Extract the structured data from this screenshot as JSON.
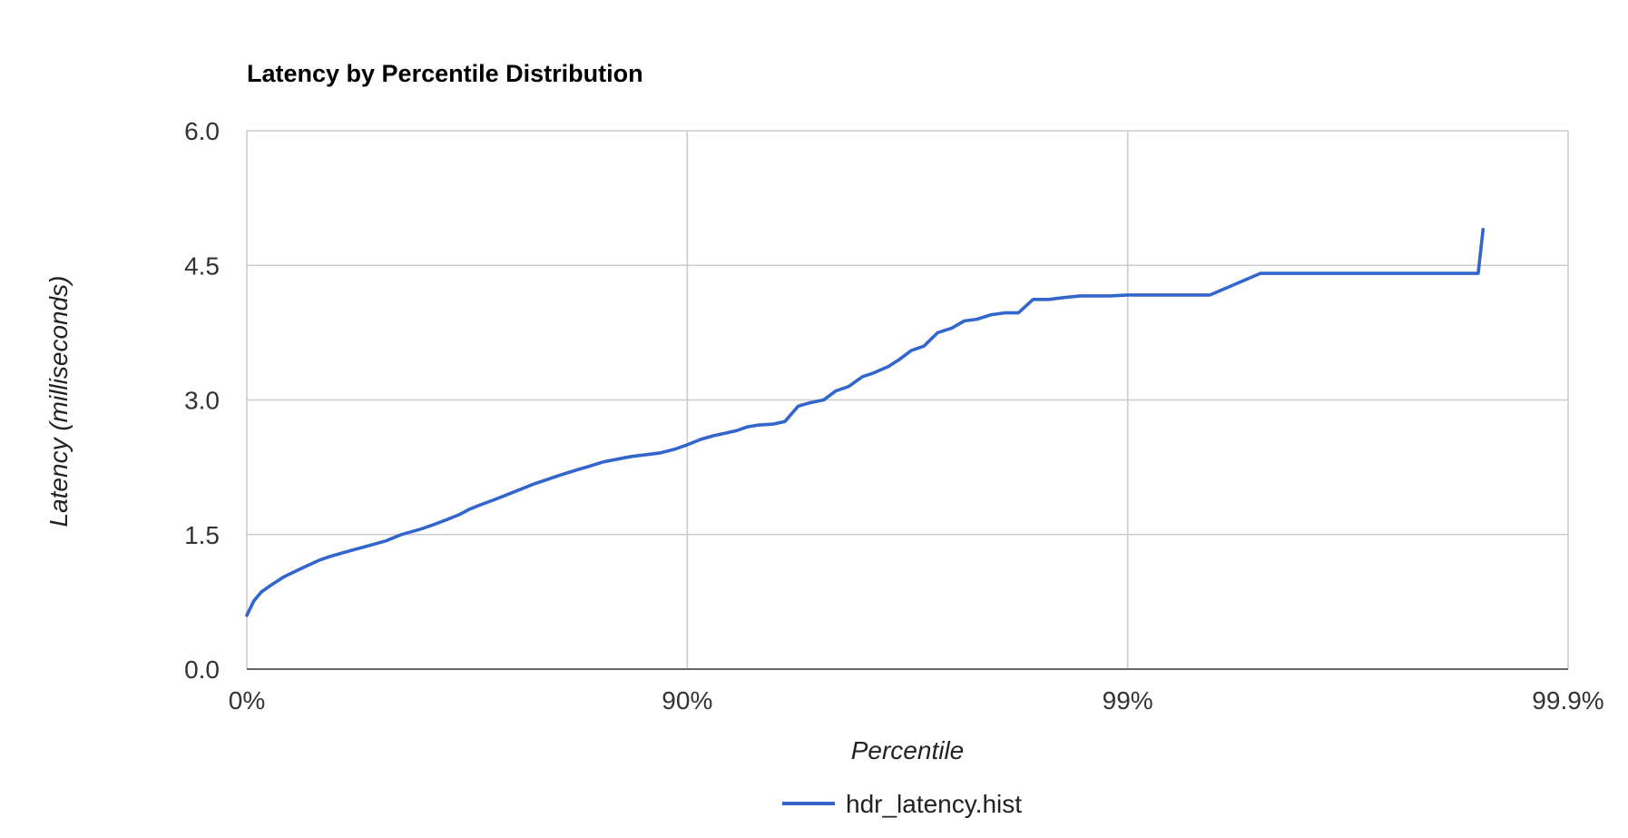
{
  "chart_data": {
    "type": "line",
    "title": "Latency by Percentile Distribution",
    "xlabel": "Percentile",
    "ylabel": "Latency (milliseconds)",
    "x_scale": "log-inverse-percentile",
    "x_ticks": [
      {
        "label": "0%",
        "value": 0
      },
      {
        "label": "90%",
        "value": 90
      },
      {
        "label": "99%",
        "value": 99
      },
      {
        "label": "99.9%",
        "value": 99.9
      }
    ],
    "y_ticks": [
      {
        "label": "0.0",
        "value": 0
      },
      {
        "label": "1.5",
        "value": 1.5
      },
      {
        "label": "3.0",
        "value": 3
      },
      {
        "label": "4.5",
        "value": 4.5
      },
      {
        "label": "6.0",
        "value": 6
      }
    ],
    "ylim": [
      0,
      6
    ],
    "xlim": [
      0,
      99.9
    ],
    "grid": true,
    "legend_position": "bottom",
    "series": [
      {
        "name": "hdr_latency.hist",
        "color": "#3366cc",
        "x": [
          0,
          3.6,
          7.3,
          12.1,
          17.7,
          23.2,
          27.6,
          32.0,
          35.7,
          41.8,
          46.6,
          51.7,
          55.4,
          59.7,
          62.8,
          65.0,
          67.0,
          68.7,
          70.5,
          72.3,
          74.2,
          76.0,
          77.6,
          79.1,
          80.5,
          81.9,
          83.3,
          84.5,
          85.6,
          86.6,
          87.6,
          88.5,
          89.3,
          90.0,
          90.67,
          91.27,
          91.8,
          92.3,
          92.7,
          93.1,
          93.6,
          94.0,
          94.4,
          94.75,
          95.1,
          95.4,
          95.7,
          96.0,
          96.22,
          96.5,
          96.7,
          96.9,
          97.1,
          97.3,
          97.49,
          97.65,
          97.8,
          97.96,
          98.1,
          98.23,
          98.36,
          98.49,
          98.6,
          98.72,
          98.82,
          98.9,
          99.0,
          99.2,
          99.35,
          99.5,
          99.57,
          99.62,
          99.66,
          99.72,
          99.743,
          99.775,
          99.785,
          99.84,
          99.844
        ],
        "y": [
          0.6,
          0.76,
          0.86,
          0.94,
          1.03,
          1.1,
          1.16,
          1.22,
          1.26,
          1.32,
          1.37,
          1.43,
          1.5,
          1.56,
          1.62,
          1.67,
          1.72,
          1.78,
          1.83,
          1.88,
          1.94,
          2.0,
          2.06,
          2.11,
          2.16,
          2.21,
          2.26,
          2.31,
          2.34,
          2.37,
          2.39,
          2.41,
          2.45,
          2.5,
          2.56,
          2.6,
          2.63,
          2.66,
          2.7,
          2.72,
          2.73,
          2.76,
          2.93,
          2.97,
          3.0,
          3.1,
          3.15,
          3.26,
          3.3,
          3.37,
          3.45,
          3.55,
          3.6,
          3.75,
          3.8,
          3.88,
          3.9,
          3.95,
          3.97,
          3.97,
          4.12,
          4.12,
          4.14,
          4.16,
          4.16,
          4.16,
          4.17,
          4.17,
          4.17,
          4.41,
          4.41,
          4.41,
          4.41,
          4.41,
          4.41,
          4.41,
          4.41,
          4.41,
          4.9
        ]
      }
    ]
  }
}
